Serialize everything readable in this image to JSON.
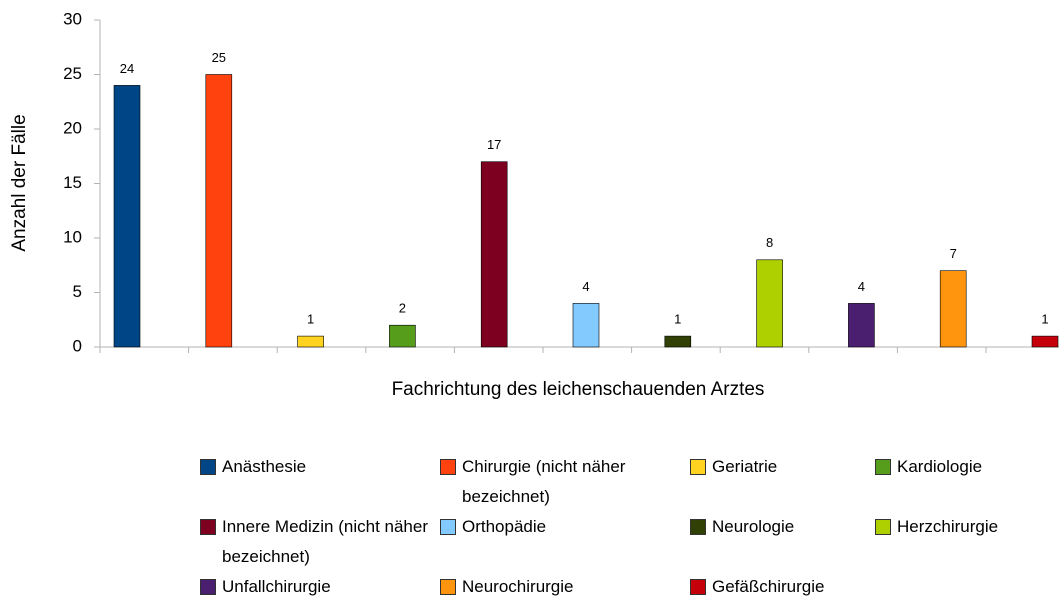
{
  "chart_data": {
    "type": "bar",
    "x_label": "Fachrichtung des leichenschauenden Arztes",
    "y_label": "Anzahl der Fälle",
    "categories": [
      "Anästhesie",
      "Chirurgie (nicht näher bezeichnet)",
      "Geriatrie",
      "Kardiologie",
      "Innere Medizin (nicht näher bezeichnet)",
      "Orthopädie",
      "Neurologie",
      "Herzchirurgie",
      "Unfallchirurgie",
      "Neurochirurgie",
      "Gefäßchirurgie"
    ],
    "values": [
      24,
      25,
      1,
      2,
      17,
      4,
      1,
      8,
      4,
      7,
      1
    ],
    "colors": [
      "#004586",
      "#ff420e",
      "#ffd320",
      "#579d1c",
      "#7e0021",
      "#83caff",
      "#314004",
      "#aecf00",
      "#4b1f6f",
      "#ff950e",
      "#c5000b"
    ],
    "ylim": [
      0,
      30
    ],
    "yticks": [
      0,
      5,
      10,
      15,
      20,
      25,
      30
    ],
    "legend": "bottom"
  }
}
